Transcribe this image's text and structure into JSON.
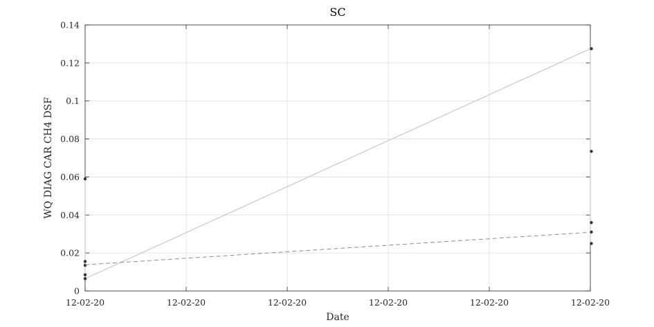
{
  "chart_data": {
    "type": "line",
    "title": "SC",
    "xlabel": "Date",
    "ylabel": "WQ DIAG CAR CH4 DSF",
    "x_tick_labels": [
      "12-02-20",
      "12-02-20",
      "12-02-20",
      "12-02-20",
      "12-02-20",
      "12-02-20"
    ],
    "y_tick_labels": [
      "0",
      "0.02",
      "0.04",
      "0.06",
      "0.08",
      "0.1",
      "0.12",
      "0.14"
    ],
    "xlim": [
      0,
      1
    ],
    "ylim": [
      0,
      0.14
    ],
    "grid": true,
    "series": [
      {
        "style": "solid-markers",
        "color": "#c8c8c8",
        "marker_color": "#333333",
        "x": [
          0.0,
          0.0,
          0.0,
          0.0,
          0.0,
          1.0,
          1.0,
          1.0,
          1.0,
          1.0
        ],
        "y": [
          0.059,
          0.0155,
          0.0135,
          0.0085,
          0.0065,
          0.1275,
          0.0735,
          0.036,
          0.031,
          0.025
        ]
      },
      {
        "style": "dashed-trend",
        "color": "#8c8c8c",
        "x": [
          0.0,
          1.0
        ],
        "y": [
          0.0138,
          0.0309
        ]
      }
    ]
  }
}
